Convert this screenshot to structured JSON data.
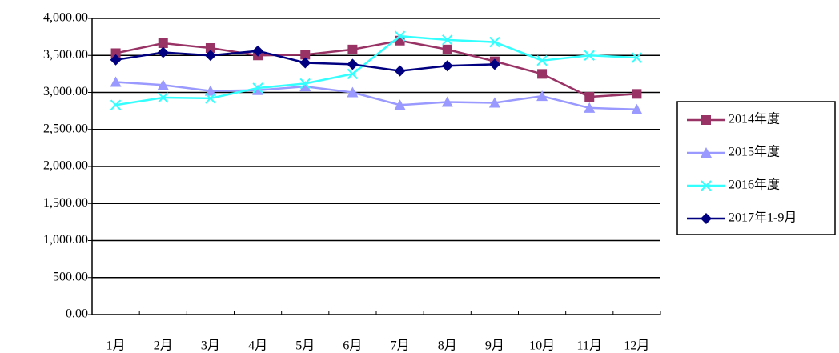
{
  "chart_data": {
    "type": "line",
    "categories": [
      "1月",
      "2月",
      "3月",
      "4月",
      "5月",
      "6月",
      "7月",
      "8月",
      "9月",
      "10月",
      "11月",
      "12月"
    ],
    "series": [
      {
        "name": "2014年度",
        "color": "#993366",
        "marker": "square",
        "values": [
          3530,
          3665,
          3600,
          3500,
          3510,
          3580,
          3700,
          3580,
          3420,
          3250,
          2940,
          2980
        ]
      },
      {
        "name": "2015年度",
        "color": "#9999ff",
        "marker": "triangle",
        "values": [
          3140,
          3100,
          3020,
          3030,
          3080,
          3000,
          2830,
          2870,
          2860,
          2950,
          2790,
          2770
        ]
      },
      {
        "name": "2016年度",
        "color": "#33ffff",
        "marker": "cross",
        "values": [
          2830,
          2930,
          2920,
          3060,
          3120,
          3250,
          3760,
          3710,
          3680,
          3430,
          3500,
          3470
        ]
      },
      {
        "name": "2017年1-9月",
        "color": "#000080",
        "marker": "diamond",
        "values": [
          3440,
          3540,
          3500,
          3560,
          3400,
          3380,
          3290,
          3360,
          3380,
          null,
          null,
          null
        ]
      }
    ],
    "ylim": [
      0,
      4000
    ],
    "yticks": [
      {
        "value": 0,
        "label": "0.00"
      },
      {
        "value": 500,
        "label": "500.00"
      },
      {
        "value": 1000,
        "label": "1,000.00"
      },
      {
        "value": 1500,
        "label": "1,500.00"
      },
      {
        "value": 2000,
        "label": "2,000.00"
      },
      {
        "value": 2500,
        "label": "2,500.00"
      },
      {
        "value": 3000,
        "label": "3,000.00"
      },
      {
        "value": 3500,
        "label": "3,500.00"
      },
      {
        "value": 4000,
        "label": "4,000.00"
      }
    ],
    "grid": true
  }
}
